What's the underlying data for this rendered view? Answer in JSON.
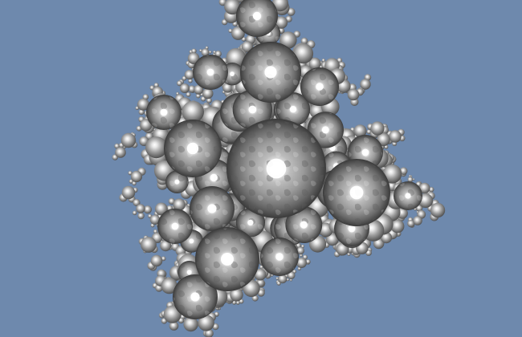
{
  "scene": {
    "background_color": "#6e89ad",
    "subject": "sphereflake-fractal",
    "material": "chrome",
    "sphere_highlight_color": "#ffffff",
    "sphere_midtone_color": "#9a9a9a",
    "sphere_shadow_color": "#3a3a3a"
  }
}
